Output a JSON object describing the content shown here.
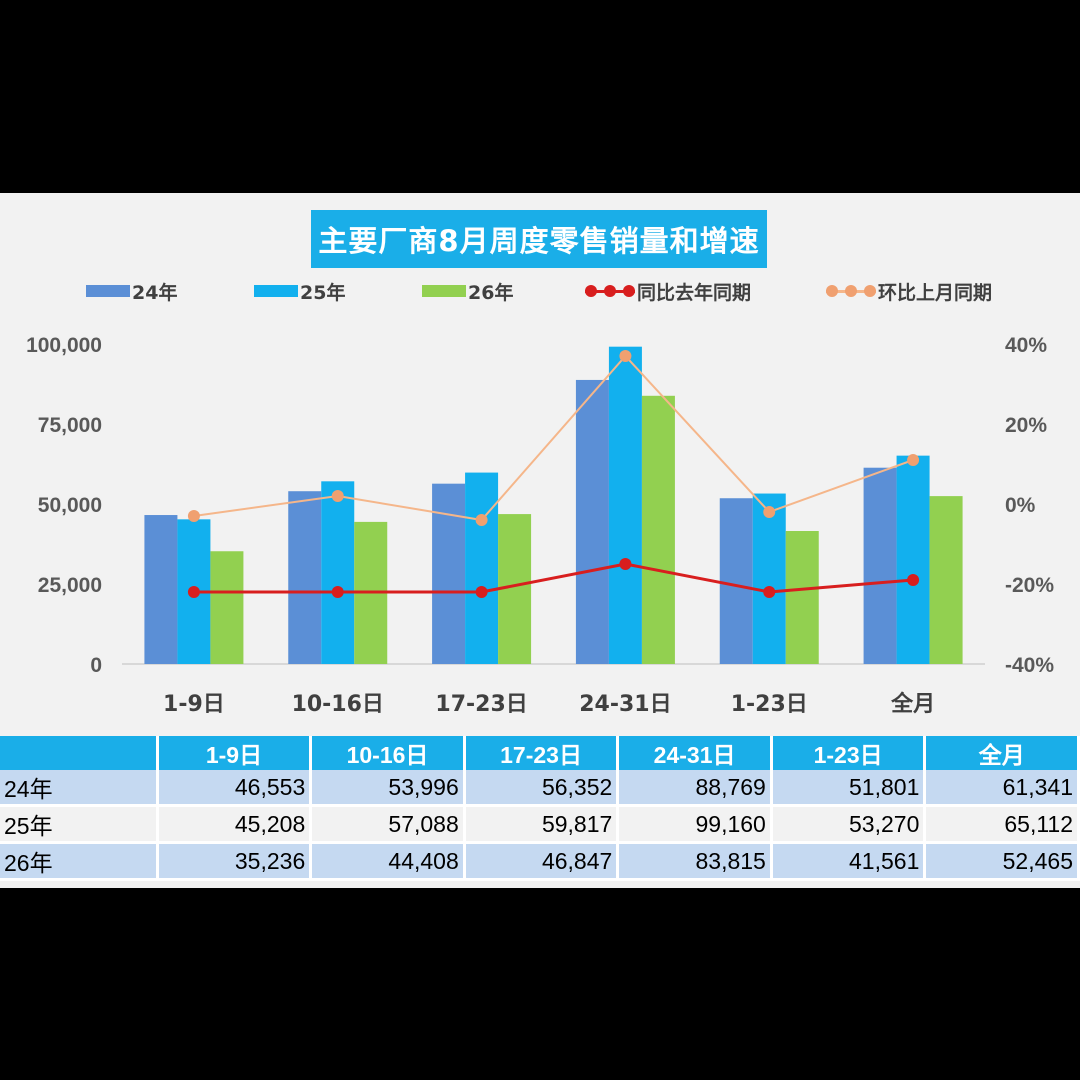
{
  "chart_data": {
    "type": "bar",
    "title": "主要厂商8月周度零售销量和增速",
    "categories": [
      "1-9日",
      "10-16日",
      "17-23日",
      "24-31日",
      "1-23日",
      "全月"
    ],
    "y_left": {
      "ticks": [
        "0",
        "25,000",
        "50,000",
        "75,000",
        "100,000"
      ],
      "ylim": [
        0,
        100000
      ]
    },
    "y_right": {
      "ticks": [
        "-40%",
        "-20%",
        "0%",
        "20%",
        "40%"
      ],
      "ylim": [
        -40,
        40
      ]
    },
    "series": [
      {
        "name": "24年",
        "kind": "bar",
        "axis": "left",
        "color": "#5b8fd6",
        "values": [
          46553,
          53996,
          56352,
          88769,
          51801,
          61341
        ]
      },
      {
        "name": "25年",
        "kind": "bar",
        "axis": "left",
        "color": "#12b0ee",
        "values": [
          45208,
          57088,
          59817,
          99160,
          53270,
          65112
        ]
      },
      {
        "name": "26年",
        "kind": "bar",
        "axis": "left",
        "color": "#92d050",
        "values": [
          35236,
          44408,
          46847,
          83815,
          41561,
          52465
        ]
      },
      {
        "name": "同比去年同期",
        "kind": "line",
        "axis": "right",
        "color": "#d81e1e",
        "values": [
          -22,
          -22,
          -22,
          -15,
          -22,
          -19
        ]
      },
      {
        "name": "环比上月同期",
        "kind": "line",
        "axis": "right",
        "color": "#f5b68a",
        "marker_color": "#f0a070",
        "values": [
          -3,
          2,
          -4,
          37,
          -2,
          11
        ]
      }
    ],
    "legend": "top",
    "grid": false
  },
  "table": {
    "headers": [
      "",
      "1-9日",
      "10-16日",
      "17-23日",
      "24-31日",
      "1-23日",
      "全月"
    ],
    "rows": [
      {
        "label": "24年",
        "cells": [
          "46,553",
          "53,996",
          "56,352",
          "88,769",
          "51,801",
          "61,341"
        ]
      },
      {
        "label": "25年",
        "cells": [
          "45,208",
          "57,088",
          "59,817",
          "99,160",
          "53,270",
          "65,112"
        ]
      },
      {
        "label": "26年",
        "cells": [
          "35,236",
          "44,408",
          "46,847",
          "83,815",
          "41,561",
          "52,465"
        ]
      }
    ]
  }
}
